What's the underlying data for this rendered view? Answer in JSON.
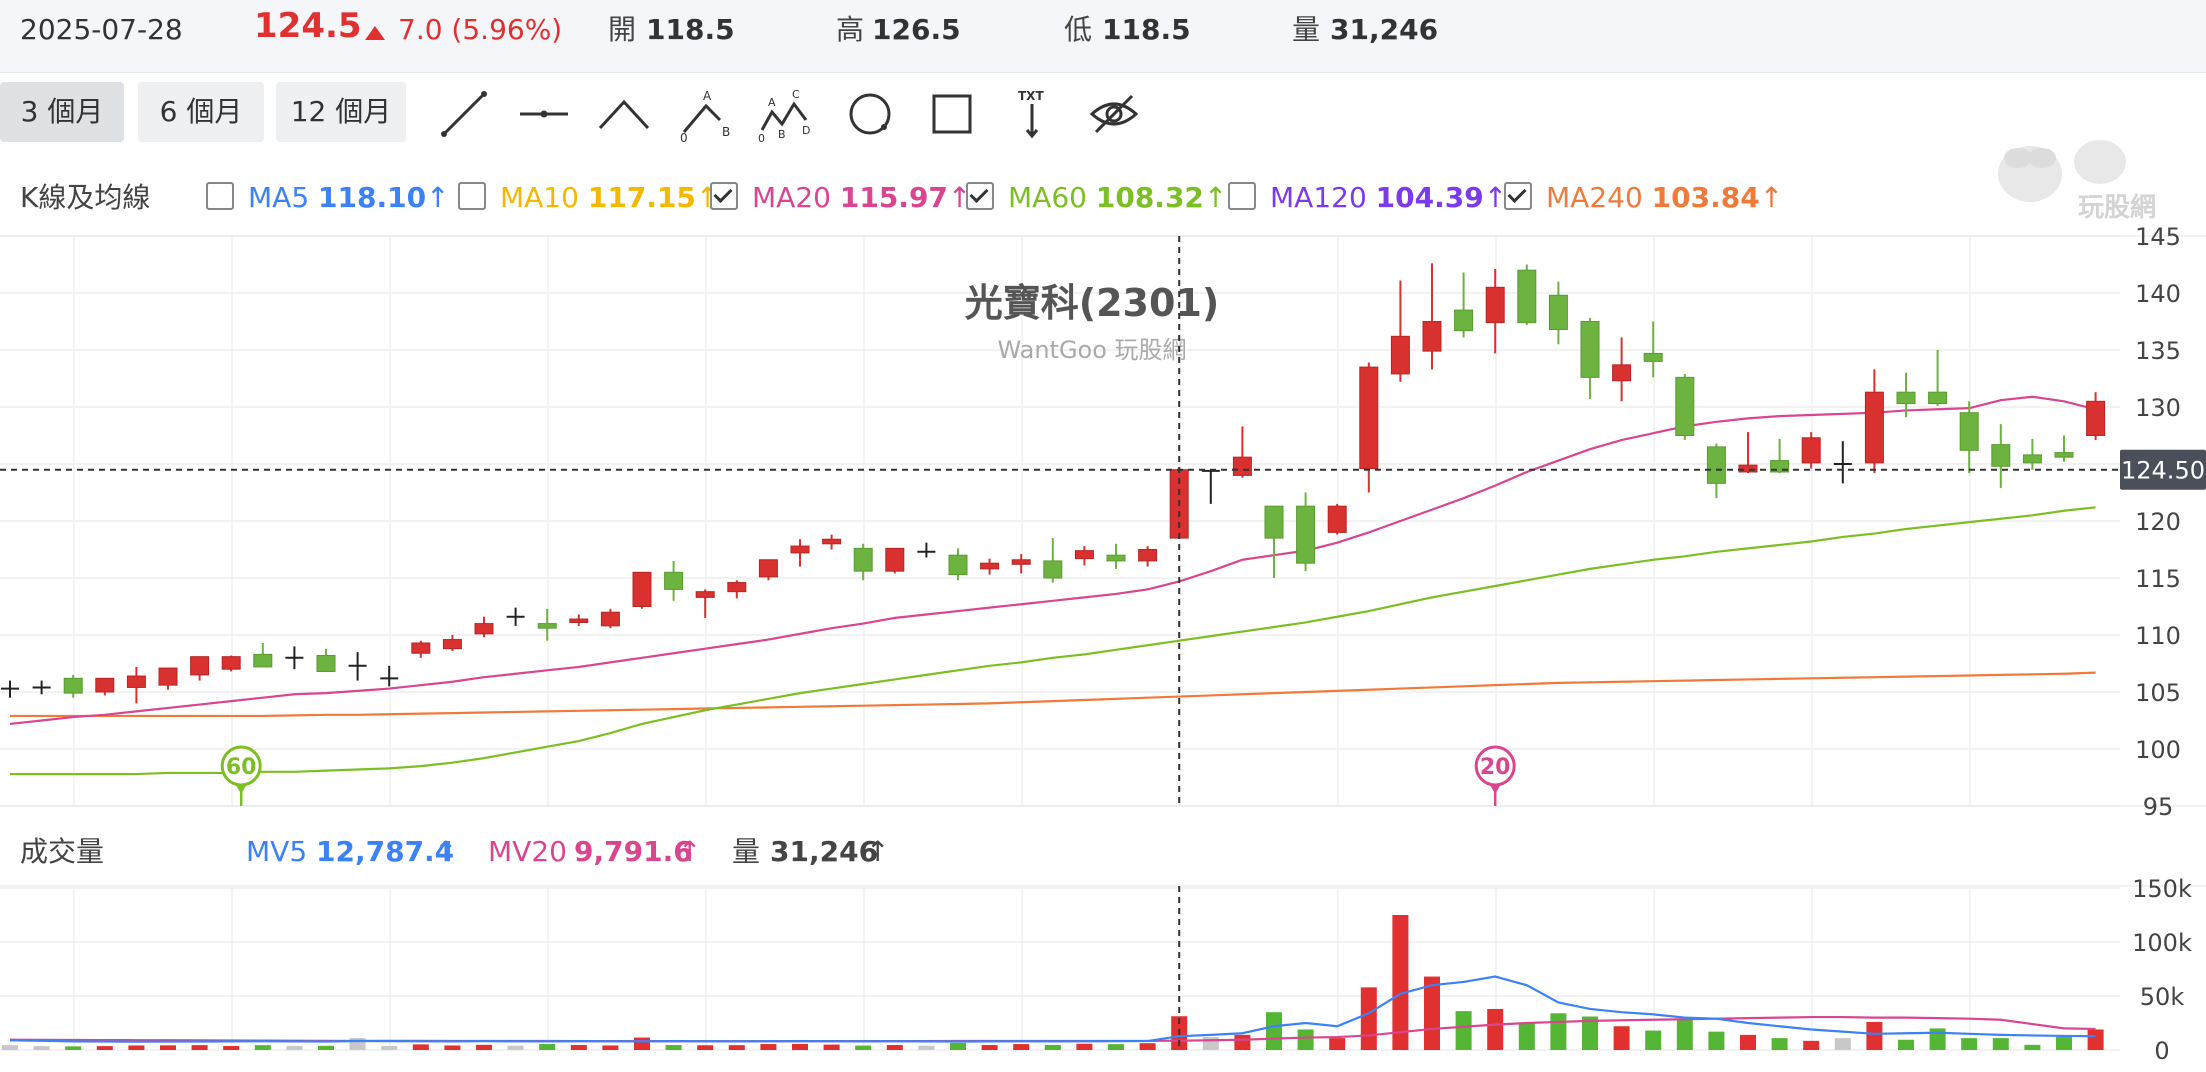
{
  "header": {
    "date": "2025-07-28",
    "price": "124.5",
    "change": "7.0 (5.96%)",
    "open_label": "開",
    "open": "118.5",
    "high_label": "高",
    "high": "126.5",
    "low_label": "低",
    "low": "118.5",
    "volume_label": "量",
    "volume": "31,246",
    "up_color": "#e0302f"
  },
  "toolbar": {
    "ranges": [
      "3 個月",
      "6 個月",
      "12 個月"
    ],
    "active_range": "3 個月",
    "tools": [
      "line-tool-icon",
      "horizontal-line-tool-icon",
      "polyline-tool-icon",
      "abc-pattern-tool-icon",
      "abcd-pattern-tool-icon",
      "circle-tool-icon",
      "rectangle-tool-icon",
      "text-annotation-tool-icon",
      "hide-drawings-icon"
    ],
    "abc_letters": [
      "A",
      "B",
      "0"
    ],
    "abcd_letters": [
      "A",
      "B",
      "C",
      "D",
      "0"
    ],
    "text_tool_label": "TXT"
  },
  "indicators": {
    "label": "K線及均線",
    "items": [
      {
        "name": "MA5",
        "value": "118.10",
        "checked": false,
        "color": "#3b82f6"
      },
      {
        "name": "MA10",
        "value": "117.15",
        "checked": false,
        "color": "#f5b800"
      },
      {
        "name": "MA20",
        "value": "115.97",
        "checked": true,
        "color": "#d9468f"
      },
      {
        "name": "MA60",
        "value": "108.32",
        "checked": true,
        "color": "#7cbf23"
      },
      {
        "name": "MA120",
        "value": "104.39",
        "checked": false,
        "color": "#7c3aed"
      },
      {
        "name": "MA240",
        "value": "103.84",
        "checked": false,
        "color": "#f07a3a"
      }
    ],
    "arrow": "↑"
  },
  "watermark": {
    "title": "光寶科(2301)",
    "subtitle": "WantGoo 玩股網",
    "logo_text": "玩股網"
  },
  "price_axis": {
    "ticks": [
      145,
      140,
      135,
      130,
      125,
      120,
      115,
      110,
      105,
      100,
      95
    ],
    "min": 95,
    "max": 145,
    "tick_labels": [
      "145",
      "140",
      "135",
      "130",
      "120",
      "115",
      "110",
      "105",
      "100",
      "95"
    ]
  },
  "current_price_label": "124.50",
  "markers": [
    {
      "label": "60",
      "color": "#7cbf23"
    },
    {
      "label": "20",
      "color": "#d9468f"
    }
  ],
  "volume_panel": {
    "label": "成交量",
    "mv5_name": "MV5",
    "mv5_value": "12,787.4",
    "mv20_name": "MV20",
    "mv20_value": "9,791.6",
    "vol_name": "量",
    "vol_value": "31,246",
    "axis_ticks": [
      "150k",
      "100k",
      "50k",
      "0"
    ],
    "axis_values": [
      150000,
      100000,
      50000,
      0
    ]
  },
  "chart_data": {
    "type": "candlestick",
    "title": "光寶科(2301)",
    "ylim": [
      95,
      145
    ],
    "candles": [
      {
        "o": 105.3,
        "h": 106.0,
        "l": 104.5,
        "c": 105.3,
        "v": 4500
      },
      {
        "o": 105.4,
        "h": 106.0,
        "l": 104.8,
        "c": 105.4,
        "v": 3600
      },
      {
        "o": 106.2,
        "h": 106.5,
        "l": 104.5,
        "c": 104.9,
        "v": 3400
      },
      {
        "o": 105.0,
        "h": 106.2,
        "l": 104.7,
        "c": 106.2,
        "v": 3600
      },
      {
        "o": 105.4,
        "h": 107.2,
        "l": 104.0,
        "c": 106.4,
        "v": 4200
      },
      {
        "o": 105.6,
        "h": 107.0,
        "l": 105.2,
        "c": 107.1,
        "v": 4300
      },
      {
        "o": 106.5,
        "h": 108.0,
        "l": 106.0,
        "c": 108.1,
        "v": 4500
      },
      {
        "o": 107.0,
        "h": 108.2,
        "l": 106.8,
        "c": 108.1,
        "v": 3700
      },
      {
        "o": 108.3,
        "h": 109.3,
        "l": 107.2,
        "c": 107.2,
        "v": 4500
      },
      {
        "o": 108.0,
        "h": 109.0,
        "l": 107.0,
        "c": 108.0,
        "v": 3800
      },
      {
        "o": 108.2,
        "h": 108.8,
        "l": 106.8,
        "c": 106.8,
        "v": 3900
      },
      {
        "o": 107.3,
        "h": 108.5,
        "l": 106.0,
        "c": 107.3,
        "v": 11000
      },
      {
        "o": 106.2,
        "h": 107.3,
        "l": 105.5,
        "c": 106.2,
        "v": 3800
      },
      {
        "o": 108.4,
        "h": 109.5,
        "l": 108.0,
        "c": 109.3,
        "v": 5200
      },
      {
        "o": 108.8,
        "h": 110.0,
        "l": 108.6,
        "c": 109.6,
        "v": 4200
      },
      {
        "o": 110.1,
        "h": 111.6,
        "l": 109.8,
        "c": 111.0,
        "v": 4800
      },
      {
        "o": 111.6,
        "h": 112.4,
        "l": 110.8,
        "c": 111.6,
        "v": 4000
      },
      {
        "o": 111.0,
        "h": 112.3,
        "l": 109.5,
        "c": 110.6,
        "v": 5500
      },
      {
        "o": 111.1,
        "h": 111.8,
        "l": 110.8,
        "c": 111.4,
        "v": 4600
      },
      {
        "o": 110.8,
        "h": 112.3,
        "l": 110.6,
        "c": 112.0,
        "v": 4200
      },
      {
        "o": 112.5,
        "h": 115.5,
        "l": 112.3,
        "c": 115.5,
        "v": 11500
      },
      {
        "o": 115.5,
        "h": 116.5,
        "l": 113.0,
        "c": 114.0,
        "v": 4600
      },
      {
        "o": 113.3,
        "h": 114.0,
        "l": 111.5,
        "c": 113.8,
        "v": 4400
      },
      {
        "o": 113.8,
        "h": 114.8,
        "l": 113.2,
        "c": 114.6,
        "v": 4500
      },
      {
        "o": 115.1,
        "h": 116.6,
        "l": 114.8,
        "c": 116.6,
        "v": 5500
      },
      {
        "o": 117.2,
        "h": 118.4,
        "l": 116.0,
        "c": 117.8,
        "v": 5600
      },
      {
        "o": 118.0,
        "h": 118.8,
        "l": 117.5,
        "c": 118.4,
        "v": 5000
      },
      {
        "o": 117.6,
        "h": 118.0,
        "l": 114.8,
        "c": 115.6,
        "v": 4100
      },
      {
        "o": 115.6,
        "h": 117.6,
        "l": 115.4,
        "c": 117.6,
        "v": 4600
      },
      {
        "o": 117.3,
        "h": 118.1,
        "l": 116.8,
        "c": 117.3,
        "v": 4000
      },
      {
        "o": 117.0,
        "h": 117.6,
        "l": 114.8,
        "c": 115.3,
        "v": 6600
      },
      {
        "o": 115.8,
        "h": 116.7,
        "l": 115.3,
        "c": 116.3,
        "v": 4600
      },
      {
        "o": 116.2,
        "h": 117.1,
        "l": 115.4,
        "c": 116.6,
        "v": 5500
      },
      {
        "o": 116.5,
        "h": 118.5,
        "l": 114.6,
        "c": 115.0,
        "v": 4700
      },
      {
        "o": 116.7,
        "h": 117.8,
        "l": 116.1,
        "c": 117.4,
        "v": 5800
      },
      {
        "o": 117.0,
        "h": 118.0,
        "l": 115.8,
        "c": 116.5,
        "v": 5400
      },
      {
        "o": 116.5,
        "h": 117.8,
        "l": 116.0,
        "c": 117.5,
        "v": 6300
      },
      {
        "o": 118.5,
        "h": 124.5,
        "l": 118.5,
        "c": 124.5,
        "v": 31246
      },
      {
        "o": 124.4,
        "h": 124.4,
        "l": 121.5,
        "c": 124.4,
        "v": 12000
      },
      {
        "o": 124.0,
        "h": 128.3,
        "l": 123.8,
        "c": 125.6,
        "v": 14000
      },
      {
        "o": 121.3,
        "h": 121.3,
        "l": 115.0,
        "c": 118.5,
        "v": 35000
      },
      {
        "o": 121.3,
        "h": 122.5,
        "l": 115.6,
        "c": 116.3,
        "v": 19000
      },
      {
        "o": 119.0,
        "h": 121.5,
        "l": 118.8,
        "c": 121.3,
        "v": 11000
      },
      {
        "o": 124.6,
        "h": 133.9,
        "l": 122.5,
        "c": 133.5,
        "v": 58000
      },
      {
        "o": 132.9,
        "h": 141.1,
        "l": 132.2,
        "c": 136.2,
        "v": 125000
      },
      {
        "o": 134.9,
        "h": 142.6,
        "l": 133.3,
        "c": 137.5,
        "v": 68000
      },
      {
        "o": 138.5,
        "h": 141.8,
        "l": 136.1,
        "c": 136.7,
        "v": 36000
      },
      {
        "o": 137.4,
        "h": 142.1,
        "l": 134.7,
        "c": 140.5,
        "v": 38000
      },
      {
        "o": 142.0,
        "h": 142.5,
        "l": 137.2,
        "c": 137.4,
        "v": 25000
      },
      {
        "o": 139.8,
        "h": 141.0,
        "l": 135.5,
        "c": 136.8,
        "v": 34000
      },
      {
        "o": 137.5,
        "h": 137.8,
        "l": 130.7,
        "c": 132.6,
        "v": 31000
      },
      {
        "o": 132.3,
        "h": 136.1,
        "l": 130.5,
        "c": 133.7,
        "v": 22000
      },
      {
        "o": 134.7,
        "h": 137.5,
        "l": 132.6,
        "c": 134.0,
        "v": 18000
      },
      {
        "o": 132.6,
        "h": 132.9,
        "l": 127.1,
        "c": 127.5,
        "v": 29000
      },
      {
        "o": 126.5,
        "h": 126.8,
        "l": 122.0,
        "c": 123.3,
        "v": 17000
      },
      {
        "o": 124.3,
        "h": 127.8,
        "l": 124.2,
        "c": 124.9,
        "v": 14000
      },
      {
        "o": 125.3,
        "h": 127.2,
        "l": 124.2,
        "c": 124.3,
        "v": 11000
      },
      {
        "o": 125.1,
        "h": 127.8,
        "l": 124.6,
        "c": 127.3,
        "v": 8500
      },
      {
        "o": 125.0,
        "h": 127.0,
        "l": 123.3,
        "c": 125.0,
        "v": 11000
      },
      {
        "o": 125.1,
        "h": 133.3,
        "l": 124.2,
        "c": 131.3,
        "v": 26000
      },
      {
        "o": 131.3,
        "h": 133.0,
        "l": 129.1,
        "c": 130.3,
        "v": 9500
      },
      {
        "o": 131.3,
        "h": 135.0,
        "l": 130.1,
        "c": 130.3,
        "v": 20000
      },
      {
        "o": 129.5,
        "h": 130.5,
        "l": 124.2,
        "c": 126.2,
        "v": 11000
      },
      {
        "o": 126.7,
        "h": 128.5,
        "l": 122.9,
        "c": 124.8,
        "v": 11000
      },
      {
        "o": 125.8,
        "h": 127.2,
        "l": 124.5,
        "c": 125.1,
        "v": 4800
      },
      {
        "o": 126.0,
        "h": 127.5,
        "l": 125.2,
        "c": 125.6,
        "v": 12000
      },
      {
        "o": 127.5,
        "h": 131.3,
        "l": 127.1,
        "c": 130.5,
        "v": 19000
      }
    ],
    "ma20": [
      102.2,
      102.5,
      102.8,
      103.0,
      103.3,
      103.6,
      103.9,
      104.2,
      104.5,
      104.8,
      104.9,
      105.1,
      105.3,
      105.6,
      105.9,
      106.3,
      106.6,
      106.9,
      107.2,
      107.6,
      108.0,
      108.4,
      108.8,
      109.2,
      109.6,
      110.1,
      110.6,
      111.0,
      111.5,
      111.8,
      112.1,
      112.4,
      112.7,
      113.0,
      113.3,
      113.6,
      114.0,
      114.7,
      115.6,
      116.6,
      117.0,
      117.4,
      118.1,
      119.0,
      120.0,
      121.0,
      122.0,
      123.1,
      124.3,
      125.3,
      126.3,
      127.1,
      127.7,
      128.3,
      128.7,
      129.0,
      129.2,
      129.3,
      129.4,
      129.5,
      129.7,
      129.8,
      129.9,
      130.6,
      130.9,
      130.5,
      129.8
    ],
    "ma60": [
      97.8,
      97.8,
      97.8,
      97.8,
      97.8,
      97.9,
      97.9,
      97.9,
      98.0,
      98.0,
      98.1,
      98.2,
      98.3,
      98.5,
      98.8,
      99.2,
      99.7,
      100.2,
      100.7,
      101.4,
      102.2,
      102.8,
      103.4,
      103.9,
      104.4,
      104.9,
      105.3,
      105.7,
      106.1,
      106.5,
      106.9,
      107.3,
      107.6,
      108.0,
      108.3,
      108.7,
      109.1,
      109.5,
      109.9,
      110.3,
      110.7,
      111.1,
      111.6,
      112.1,
      112.7,
      113.3,
      113.8,
      114.3,
      114.8,
      115.3,
      115.8,
      116.2,
      116.6,
      116.9,
      117.3,
      117.6,
      117.9,
      118.2,
      118.6,
      118.9,
      119.3,
      119.6,
      119.9,
      120.2,
      120.5,
      120.9,
      121.2
    ],
    "ma240": [
      102.9,
      102.9,
      102.9,
      102.9,
      102.9,
      102.9,
      102.9,
      102.9,
      102.9,
      102.95,
      103.0,
      103.0,
      103.05,
      103.1,
      103.15,
      103.2,
      103.25,
      103.3,
      103.35,
      103.4,
      103.45,
      103.5,
      103.55,
      103.6,
      103.65,
      103.7,
      103.75,
      103.8,
      103.85,
      103.9,
      103.95,
      104.0,
      104.1,
      104.2,
      104.3,
      104.4,
      104.5,
      104.6,
      104.7,
      104.8,
      104.9,
      105.0,
      105.1,
      105.2,
      105.3,
      105.4,
      105.5,
      105.6,
      105.7,
      105.8,
      105.85,
      105.9,
      105.95,
      106.0,
      106.05,
      106.1,
      106.15,
      106.2,
      106.25,
      106.3,
      106.35,
      106.4,
      106.45,
      106.5,
      106.55,
      106.6,
      106.7
    ],
    "mv5": [
      9000,
      8500,
      8000,
      7800,
      7700,
      7800,
      7900,
      8000,
      8100,
      8000,
      7900,
      8300,
      8200,
      8100,
      8000,
      8200,
      8100,
      8000,
      8200,
      8100,
      8000,
      8200,
      8100,
      8000,
      8100,
      8200,
      8100,
      8000,
      8100,
      8000,
      7900,
      8000,
      8100,
      8000,
      8100,
      8200,
      8300,
      12800,
      14000,
      15500,
      22000,
      25000,
      22000,
      34000,
      52000,
      60000,
      63000,
      68000,
      60000,
      44000,
      38000,
      35000,
      33000,
      30000,
      29000,
      25000,
      22000,
      19000,
      17000,
      15000,
      15500,
      16000,
      15000,
      14000,
      13500,
      13000,
      12800
    ],
    "mv20": [
      9500,
      9400,
      9300,
      9200,
      9100,
      9000,
      8900,
      8800,
      8700,
      8600,
      8500,
      8400,
      8500,
      8500,
      8400,
      8400,
      8300,
      8300,
      8200,
      8200,
      8200,
      8100,
      8100,
      8100,
      8100,
      8200,
      8200,
      8200,
      8200,
      8200,
      8300,
      8300,
      8300,
      8300,
      8300,
      8400,
      8400,
      8600,
      9000,
      9500,
      10500,
      11500,
      12000,
      13500,
      16500,
      19500,
      21500,
      23500,
      25000,
      26000,
      27000,
      27500,
      28000,
      28500,
      29000,
      29500,
      30000,
      30500,
      30500,
      30000,
      30000,
      29500,
      29000,
      28000,
      24000,
      20000,
      19500
    ],
    "markers": [
      {
        "label": "60",
        "index": 7
      },
      {
        "label": "20",
        "index": 47
      }
    ],
    "current_price": 124.5
  }
}
